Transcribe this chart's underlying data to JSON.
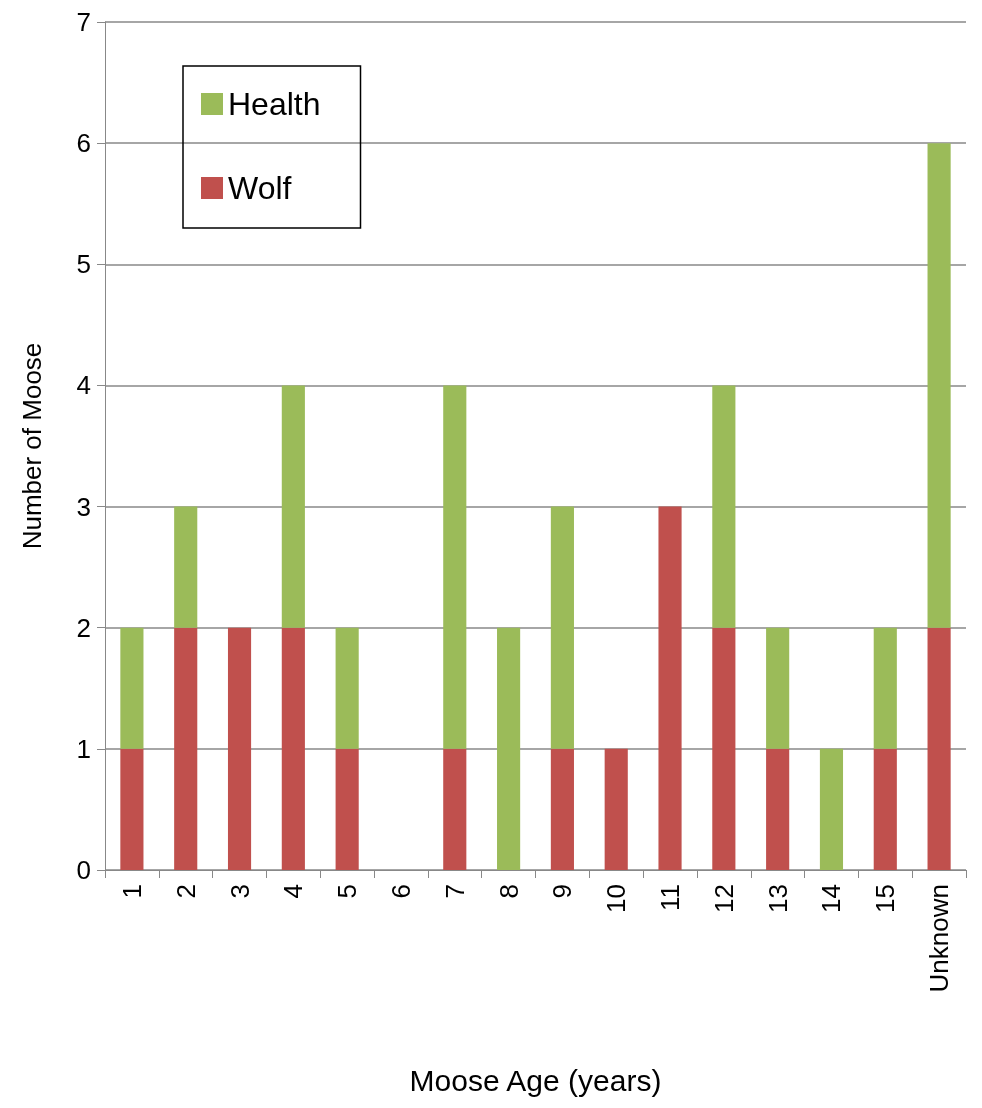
{
  "chart_data": {
    "type": "bar",
    "stacked": true,
    "xlabel": "Moose Age (years)",
    "ylabel": "Number of Moose",
    "categories": [
      "1",
      "2",
      "3",
      "4",
      "5",
      "6",
      "7",
      "8",
      "9",
      "10",
      "11",
      "12",
      "13",
      "14",
      "15",
      "Unknown"
    ],
    "series": [
      {
        "name": "Wolf",
        "color": "#c0504d",
        "values": [
          1,
          2,
          2,
          2,
          1,
          0,
          1,
          0,
          1,
          1,
          3,
          2,
          1,
          0,
          1,
          2
        ]
      },
      {
        "name": "Health",
        "color": "#9bbb59",
        "values": [
          1,
          1,
          0,
          2,
          1,
          0,
          3,
          2,
          2,
          0,
          0,
          2,
          1,
          1,
          1,
          4
        ]
      }
    ],
    "ylim": [
      0,
      7
    ],
    "yticks": [
      0,
      1,
      2,
      3,
      4,
      5,
      6,
      7
    ],
    "grid": "y",
    "legend": "top left"
  }
}
